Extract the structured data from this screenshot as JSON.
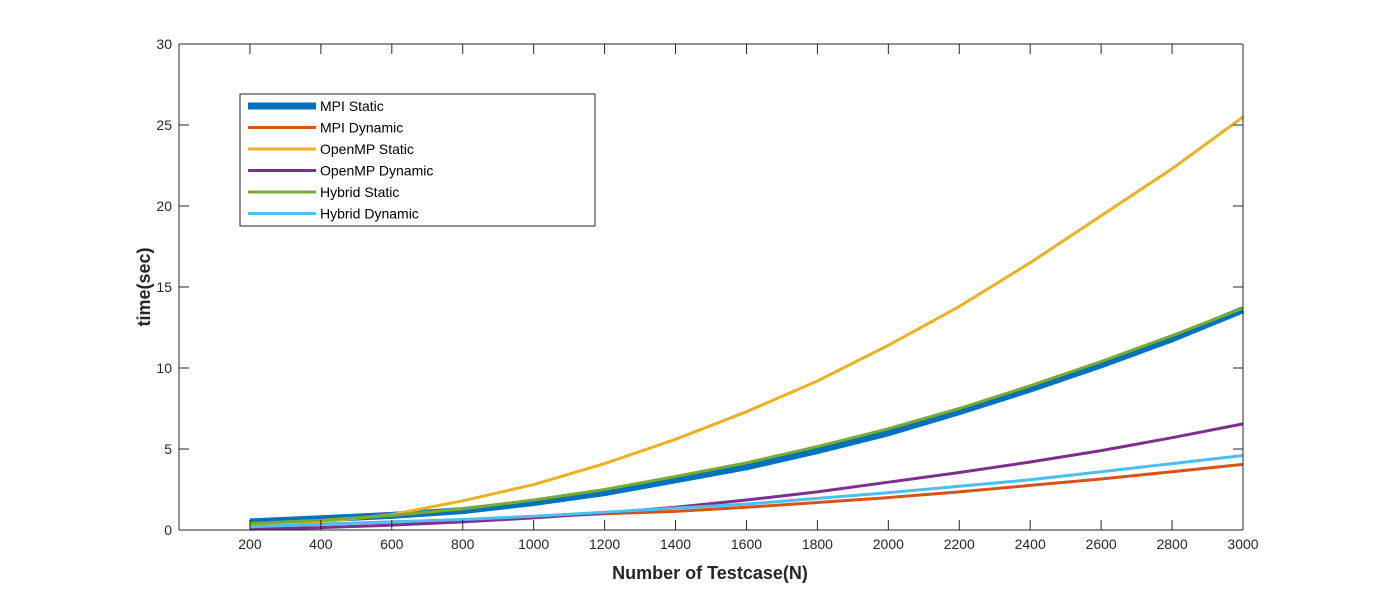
{
  "chart_data": {
    "type": "line",
    "title": "",
    "xlabel": "Number of Testcase(N)",
    "ylabel": "time(sec)",
    "xlim": [
      0,
      3000
    ],
    "ylim": [
      0,
      30
    ],
    "xticks": [
      200,
      400,
      600,
      800,
      1000,
      1200,
      1400,
      1600,
      1800,
      2000,
      2200,
      2400,
      2600,
      2800,
      3000
    ],
    "yticks": [
      0,
      5,
      10,
      15,
      20,
      25,
      30
    ],
    "grid": false,
    "legend_position": "top-left",
    "x": [
      200,
      400,
      600,
      800,
      1000,
      1200,
      1400,
      1600,
      1800,
      2000,
      2200,
      2400,
      2600,
      2800,
      3000
    ],
    "series": [
      {
        "name": "MPI Static",
        "color": "#0072BD",
        "width": "thick",
        "values": [
          0.5,
          0.7,
          0.9,
          1.2,
          1.7,
          2.3,
          3.1,
          3.9,
          4.9,
          6.0,
          7.3,
          8.7,
          10.2,
          11.8,
          13.6
        ]
      },
      {
        "name": "MPI Dynamic",
        "color": "#D95319",
        "width": "normal",
        "values": [
          0.2,
          0.35,
          0.5,
          0.6,
          0.8,
          1.0,
          1.15,
          1.4,
          1.7,
          2.0,
          2.35,
          2.75,
          3.15,
          3.6,
          4.05
        ]
      },
      {
        "name": "OpenMP Static",
        "color": "#EDB120",
        "width": "normal",
        "values": [
          0.3,
          0.5,
          0.95,
          1.8,
          2.8,
          4.1,
          5.6,
          7.3,
          9.2,
          11.4,
          13.8,
          16.5,
          19.4,
          22.3,
          25.5
        ]
      },
      {
        "name": "OpenMP Dynamic",
        "color": "#7E2F8E",
        "width": "normal",
        "values": [
          0.05,
          0.15,
          0.3,
          0.5,
          0.75,
          1.05,
          1.4,
          1.85,
          2.35,
          2.95,
          3.55,
          4.2,
          4.9,
          5.7,
          6.55
        ]
      },
      {
        "name": "Hybrid Static",
        "color": "#77AC30",
        "width": "normal",
        "values": [
          0.4,
          0.6,
          0.9,
          1.3,
          1.85,
          2.5,
          3.3,
          4.15,
          5.15,
          6.25,
          7.5,
          8.9,
          10.4,
          12.0,
          13.7
        ]
      },
      {
        "name": "Hybrid Dynamic",
        "color": "#4DBEEE",
        "width": "normal",
        "values": [
          0.2,
          0.35,
          0.5,
          0.65,
          0.85,
          1.1,
          1.35,
          1.6,
          1.95,
          2.3,
          2.7,
          3.1,
          3.6,
          4.1,
          4.6
        ]
      }
    ]
  }
}
